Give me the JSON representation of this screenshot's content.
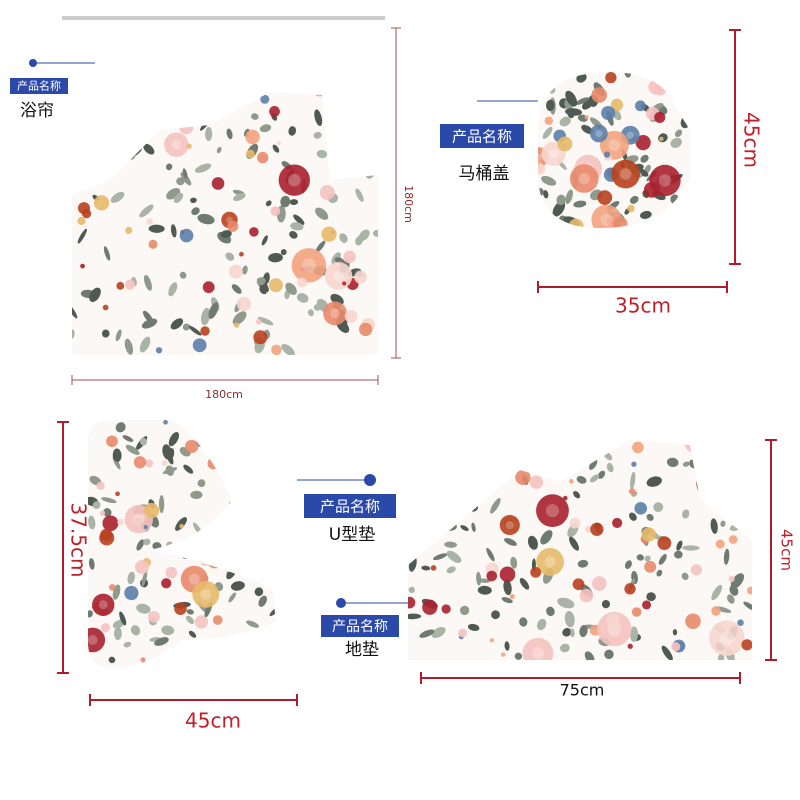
{
  "products": [
    {
      "tag": "产品名称",
      "name": "浴帘",
      "width": "180cm",
      "height": "180cm"
    },
    {
      "tag": "产品名称",
      "name": "马桶盖",
      "width": "35cm",
      "height": "45cm"
    },
    {
      "tag": "产品名称",
      "name": "U型垫",
      "width": "45cm",
      "height": "37.5cm"
    },
    {
      "tag": "产品名称",
      "name": "地垫",
      "width": "75cm",
      "height": "45cm"
    }
  ]
}
